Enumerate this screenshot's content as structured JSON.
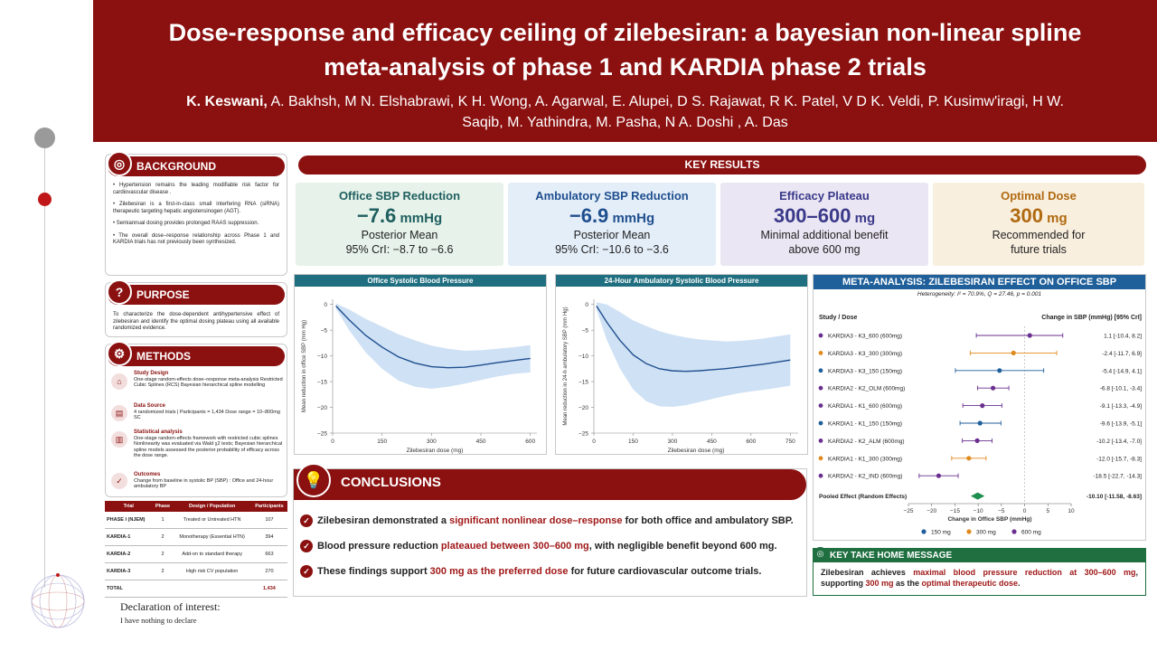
{
  "header": {
    "title": "Dose-response and efficacy ceiling of zilebesiran: a bayesian non-linear spline meta-analysis of phase 1 and KARDIA phase 2 trials",
    "lead_author": "K. Keswani,",
    "authors": "A. Bakhsh, M N. Elshabrawi, K H. Wong, A. Agarwal, E. Alupei, D S. Rajawat, R K. Patel, V D K. Veldi, P. Kusimw'iragi, H W. Saqib, M. Yathindra, M. Pasha, N A. Doshi , A. Das"
  },
  "background": {
    "heading": "BACKGROUND",
    "items": [
      "• Hypertension remains the leading modifiable risk factor for cardiovascular disease .",
      "• Zilebesiran is a first-in-class small interfering RNA (siRNA) therapeutic targeting hepatic angiotensinogen (AGT).",
      "• Semiannual dosing provides prolonged RAAS suppression.",
      "• The overall dose–response relationship across Phase 1 and KARDIA trials has not previously been synthesized."
    ]
  },
  "purpose": {
    "heading": "PURPOSE",
    "text": "To characterize the dose-dependent antihypertensive effect of zilebesiran and identify the optimal dosing plateau using all available randomized evidence."
  },
  "methods": {
    "heading": "METHODS",
    "items": [
      {
        "title": "Study Design",
        "text": "One-stage random-effects dose–response meta-analysis Restricted Cubic Splines (RCS) Bayesian hierarchical spline modelling"
      },
      {
        "title": "Data Source",
        "text": "4 randomized trials | Participants = 1,434 Dose range = 10–800mg SC"
      },
      {
        "title": "Statistical analysis",
        "text": "One-stage random-effects framework with restricted cubic splines Nonlinearity was evaluated via Wald χ2 tests; Bayesian hierarchical spline models assessed the posterior probability of efficacy across the dose range."
      },
      {
        "title": "Outcomes",
        "text": "Change from baseline in systolic BP (SBP) : Office and 24-hour ambulatory BP"
      }
    ]
  },
  "trials_table": {
    "headers": [
      "Trial",
      "Phase",
      "Design / Population",
      "Participants"
    ],
    "rows": [
      [
        "PHASE I (NJEM)",
        "1",
        "Treated or Untreated HTN",
        "107"
      ],
      [
        "KARDIA-1",
        "2",
        "Monotherapy (Essential HTN)",
        "394"
      ],
      [
        "KARDIA-2",
        "2",
        "Add-on to standard therapy",
        "663"
      ],
      [
        "KARDIA-3",
        "2",
        "High risk CV population",
        "270"
      ]
    ],
    "total_label": "TOTAL",
    "total_value": "1,434"
  },
  "declaration": {
    "title": "Declaration of interest:",
    "text": "I have nothing to declare"
  },
  "key_results": {
    "heading": "KEY RESULTS",
    "cards": [
      {
        "title": "Office SBP Reduction",
        "value": "−7.6",
        "unit": " mmHg",
        "line1": "Posterior Mean",
        "line2": "95% CrI: −8.7 to −6.6",
        "bg": "#e6f2ea",
        "color": "#1f5f5f"
      },
      {
        "title": "Ambulatory SBP Reduction",
        "value": "−6.9",
        "unit": " mmHg",
        "line1": "Posterior Mean",
        "line2": "95% CrI: −10.6 to −3.6",
        "bg": "#e4eef8",
        "color": "#1f4f8f"
      },
      {
        "title": "Efficacy Plateau",
        "value": "300–600",
        "unit": " mg",
        "line1": "Minimal additional benefit",
        "line2": "above 600 mg",
        "bg": "#ebe6f3",
        "color": "#3a3a8a"
      },
      {
        "title": "Optimal Dose",
        "value": "300",
        "unit": " mg",
        "line1": "Recommended for",
        "line2": "future trials",
        "bg": "#f9efdf",
        "color": "#b06a10"
      }
    ]
  },
  "charts": {
    "office_title": "Office Systolic Blood Pressure",
    "amb_title": "24-Hour Ambulatory Systolic Blood Pressure",
    "office_ylabel": "Mean reduction in office SBP (mm Hg)",
    "amb_ylabel": "Mean reduction in 24-h ambulatory SBP (mm Hg)",
    "xlabel": "Zilebesiran dose (mg)"
  },
  "chart_data": [
    {
      "type": "line",
      "title": "Office Systolic Blood Pressure",
      "xlabel": "Zilebesiran dose (mg)",
      "ylabel": "Mean reduction in office SBP (mm Hg)",
      "xlim": [
        0,
        620
      ],
      "ylim": [
        -25,
        1
      ],
      "xticks": [
        0,
        150,
        300,
        450,
        600
      ],
      "yticks": [
        0,
        -5,
        -10,
        -15,
        -20,
        -25
      ],
      "x": [
        10,
        50,
        100,
        150,
        200,
        250,
        300,
        350,
        400,
        450,
        500,
        550,
        600
      ],
      "mean": [
        -0.3,
        -3.0,
        -6.0,
        -8.3,
        -10.2,
        -11.4,
        -12.1,
        -12.3,
        -12.2,
        -11.8,
        -11.3,
        -10.9,
        -10.5
      ],
      "lower": [
        -0.8,
        -5.0,
        -9.3,
        -12.5,
        -14.8,
        -16.0,
        -16.4,
        -16.0,
        -15.4,
        -14.7,
        -14.0,
        -13.5,
        -13.2
      ],
      "upper": [
        0.2,
        -1.0,
        -2.8,
        -4.3,
        -5.8,
        -7.0,
        -8.0,
        -8.6,
        -9.0,
        -8.9,
        -8.6,
        -8.3,
        -7.9
      ]
    },
    {
      "type": "line",
      "title": "24-Hour Ambulatory Systolic Blood Pressure",
      "xlabel": "Zilebesiran dose (mg)",
      "ylabel": "Mean reduction in 24-h ambulatory SBP (mm Hg)",
      "xlim": [
        0,
        780
      ],
      "ylim": [
        -25,
        1
      ],
      "xticks": [
        0,
        150,
        300,
        450,
        600,
        750
      ],
      "yticks": [
        0,
        -5,
        -10,
        -15,
        -20,
        -25
      ],
      "x": [
        10,
        50,
        100,
        150,
        200,
        250,
        300,
        350,
        400,
        450,
        500,
        550,
        600,
        650,
        700,
        750
      ],
      "mean": [
        -0.3,
        -3.5,
        -7.0,
        -9.8,
        -11.5,
        -12.5,
        -12.9,
        -13.0,
        -12.9,
        -12.7,
        -12.5,
        -12.2,
        -11.9,
        -11.6,
        -11.2,
        -10.8
      ],
      "lower": [
        -1.0,
        -7.0,
        -12.5,
        -16.5,
        -18.8,
        -19.8,
        -19.9,
        -19.6,
        -19.0,
        -18.4,
        -17.8,
        -17.3,
        -16.9,
        -16.6,
        -16.2,
        -15.8
      ],
      "upper": [
        0.4,
        0.0,
        -1.5,
        -3.1,
        -4.2,
        -5.2,
        -5.9,
        -6.4,
        -6.8,
        -7.0,
        -7.2,
        -7.1,
        -6.9,
        -6.6,
        -6.2,
        -5.8
      ]
    },
    {
      "type": "forest",
      "title": "META-ANALYSIS: ZILEBESIRAN EFFECT ON OFFICE SBP",
      "xlabel": "Change in Office SBP (mmHg)",
      "xlim": [
        -25,
        10
      ],
      "xticks": [
        -25,
        -20,
        -15,
        -10,
        -5,
        0,
        5,
        10
      ],
      "studies": [
        {
          "label": "KARDIA3 - K3_600 (600mg)",
          "est": 1.1,
          "lo": -10.4,
          "hi": 8.2,
          "text": "1.1 [-10.4, 8.2]",
          "group": "600 mg"
        },
        {
          "label": "KARDIA3 - K3_300 (300mg)",
          "est": -2.4,
          "lo": -11.7,
          "hi": 6.9,
          "text": "-2.4 [-11.7, 6.9]",
          "group": "300 mg"
        },
        {
          "label": "KARDIA3 - K3_150 (150mg)",
          "est": -5.4,
          "lo": -14.9,
          "hi": 4.1,
          "text": "-5.4 [-14.9, 4.1]",
          "group": "150 mg"
        },
        {
          "label": "KARDIA2 - K2_OLM (600mg)",
          "est": -6.8,
          "lo": -10.1,
          "hi": -3.4,
          "text": "-6.8 [-10.1, -3.4]",
          "group": "600 mg"
        },
        {
          "label": "KARDIA1 - K1_600 (600mg)",
          "est": -9.1,
          "lo": -13.3,
          "hi": -4.9,
          "text": "-9.1 [-13.3, -4.9]",
          "group": "600 mg"
        },
        {
          "label": "KARDIA1 - K1_150 (150mg)",
          "est": -9.6,
          "lo": -13.9,
          "hi": -5.1,
          "text": "-9.6 [-13.9, -5.1]",
          "group": "150 mg"
        },
        {
          "label": "KARDIA2 - K2_ALM (600mg)",
          "est": -10.2,
          "lo": -13.4,
          "hi": -7.0,
          "text": "-10.2 [-13.4, -7.0]",
          "group": "600 mg"
        },
        {
          "label": "KARDIA1 - K1_300 (300mg)",
          "est": -12.0,
          "lo": -15.7,
          "hi": -8.3,
          "text": "-12.0 [-15.7, -8.3]",
          "group": "300 mg"
        },
        {
          "label": "KARDIA2 - K2_IND (600mg)",
          "est": -18.5,
          "lo": -22.7,
          "hi": -14.3,
          "text": "-18.5 [-22.7, -14.3]",
          "group": "600 mg"
        }
      ],
      "pooled": {
        "label": "Pooled Effect (Random Effects)",
        "est": -10.1,
        "lo": -11.58,
        "hi": -8.63,
        "text": "-10.10 [-11.58, -8.63]"
      },
      "legend": [
        {
          "name": "150 mg",
          "color": "#1f5f9a"
        },
        {
          "name": "300 mg",
          "color": "#e08a1e"
        },
        {
          "name": "600 mg",
          "color": "#6a2f8f"
        }
      ]
    }
  ],
  "meta": {
    "title": "META-ANALYSIS: ZILEBESIRAN EFFECT ON OFFICE SBP",
    "heterogeneity": "Heterogeneity: I² = 70.9%, Q = 27.46, p = 0.001",
    "col_left": "Study / Dose",
    "col_right": "Change in SBP (mmHg) [95% CrI]"
  },
  "conclusions": {
    "heading": "CONCLUSIONS",
    "items": [
      {
        "pre": "Zilebesiran demonstrated a ",
        "hl": "significant nonlinear dose–response",
        "post": " for both office and ambulatory SBP."
      },
      {
        "pre": "Blood pressure reduction ",
        "hl": "plateaued between 300–600 mg",
        "post": ", with negligible benefit beyond 600 mg."
      },
      {
        "pre": "These findings support ",
        "hl": "300 mg as the preferred dose",
        "post": " for future cardiovascular outcome trials."
      }
    ]
  },
  "ktm": {
    "heading": "KEY TAKE HOME MESSAGE",
    "p1": "Zilebesiran achieves ",
    "h1": "maximal blood pressure reduction at 300–600 mg",
    "p2": ", supporting ",
    "h2": "300 mg",
    "p3": " as the ",
    "h3": "optimal therapeutic dose",
    "p4": "."
  }
}
